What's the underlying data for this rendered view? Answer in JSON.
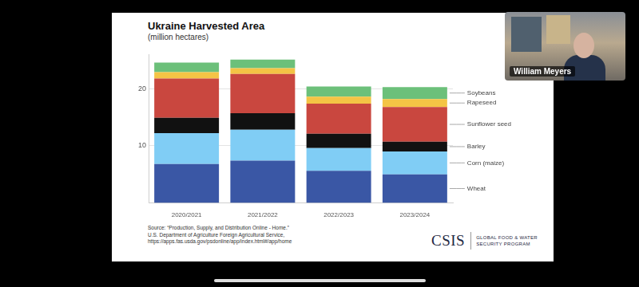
{
  "chart_data": {
    "type": "bar",
    "title": "Ukraine Harvested Area",
    "subtitle": "(million hectares)",
    "categories": [
      "2020/2021",
      "2021/2022",
      "2022/2023",
      "2023/2024"
    ],
    "series": [
      {
        "name": "Wheat",
        "color": "#3a57a5",
        "values": [
          6.8,
          7.4,
          5.6,
          5.0
        ]
      },
      {
        "name": "Corn (maize)",
        "color": "#80cdf5",
        "values": [
          5.4,
          5.4,
          4.0,
          4.0
        ]
      },
      {
        "name": "Barley",
        "color": "#111111",
        "values": [
          2.7,
          2.9,
          2.5,
          1.7
        ]
      },
      {
        "name": "Sunflower seed",
        "color": "#c9473f",
        "values": [
          6.9,
          6.9,
          5.3,
          6.1
        ]
      },
      {
        "name": "Rapeseed",
        "color": "#f4c445",
        "values": [
          1.1,
          1.0,
          1.2,
          1.4
        ]
      },
      {
        "name": "Soybeans",
        "color": "#6cc07a",
        "values": [
          1.7,
          1.5,
          1.8,
          2.1
        ]
      }
    ],
    "stacked": true,
    "ylim": [
      0,
      26
    ],
    "yticks": [
      10,
      20
    ],
    "grid": true,
    "legend": "right"
  },
  "slide": {
    "source": [
      "Source: “Production, Supply, and Distribution Online - Home.”",
      "U.S. Department of Agriculture Foreign Agricultural Service,",
      "https://apps.fas.usda.gov/psdonline/app/index.html#/app/home"
    ],
    "logo": "CSIS",
    "logo_caption": [
      "GLOBAL FOOD & WATER",
      "SECURITY PROGRAM"
    ]
  },
  "video": {
    "speaker": "William Meyers"
  }
}
